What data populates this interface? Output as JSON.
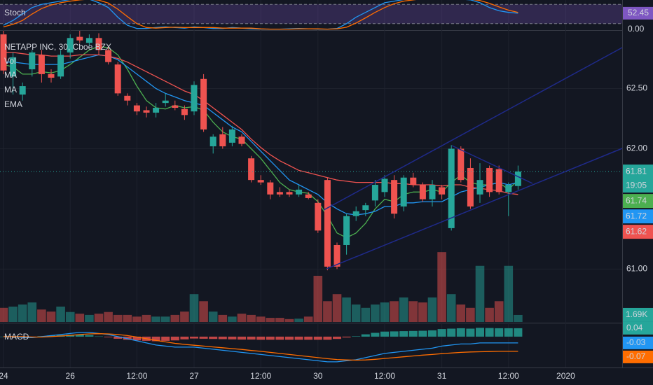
{
  "chart_data": [
    {
      "type": "candlestick",
      "title": "NETAPP INC, 30, Cboe BZX",
      "categories": [
        "24",
        null,
        null,
        null,
        null,
        null,
        null,
        "26",
        null,
        null,
        null,
        null,
        null,
        null,
        "12:00",
        null,
        null,
        null,
        null,
        null,
        "27",
        null,
        null,
        null,
        null,
        null,
        null,
        "12:00",
        null,
        null,
        null,
        null,
        null,
        "30",
        null,
        null,
        null,
        null,
        null,
        null,
        "12:00",
        null,
        null,
        null,
        null,
        null,
        "31",
        null,
        null,
        null,
        null,
        null,
        null,
        "12:00",
        null,
        null,
        null,
        null,
        null,
        "2020"
      ],
      "open": [
        62.95,
        62.6,
        62.45,
        62.66,
        62.78,
        62.62,
        62.6,
        62.8,
        62.93,
        62.88,
        62.92,
        62.82,
        62.7,
        62.44,
        62.36,
        62.32,
        62.3,
        62.38,
        62.36,
        62.33,
        62.31,
        62.58,
        62.02,
        62.12,
        62.05,
        62.1,
        61.92,
        61.74,
        61.72,
        61.64,
        61.64,
        61.62,
        61.62,
        61.55,
        61.74,
        61.2,
        61.2,
        61.44,
        61.49,
        61.57,
        61.64,
        61.74,
        61.52,
        61.76,
        61.7,
        61.58,
        61.68,
        61.34,
        62.0,
        61.84,
        61.62,
        61.84,
        61.83,
        61.64,
        61.69,
        null,
        null,
        null,
        null,
        null
      ],
      "high": [
        62.98,
        62.8,
        62.55,
        62.82,
        62.82,
        62.66,
        62.82,
        62.95,
        62.98,
        62.95,
        62.96,
        62.85,
        62.72,
        62.46,
        62.38,
        62.35,
        62.38,
        62.46,
        62.4,
        62.36,
        62.56,
        62.62,
        62.12,
        62.18,
        62.19,
        62.12,
        61.94,
        61.78,
        61.74,
        61.68,
        61.66,
        61.7,
        61.64,
        61.58,
        61.76,
        61.22,
        61.46,
        61.52,
        61.55,
        61.74,
        61.78,
        61.78,
        61.78,
        61.8,
        61.72,
        61.74,
        61.7,
        62.03,
        62.02,
        61.92,
        61.88,
        61.86,
        61.86,
        61.72,
        61.86,
        null,
        null,
        null,
        null,
        null
      ],
      "low": [
        62.62,
        62.45,
        62.4,
        62.6,
        62.55,
        62.55,
        62.58,
        62.75,
        62.88,
        62.86,
        62.78,
        62.7,
        62.44,
        62.36,
        62.28,
        62.26,
        62.26,
        62.35,
        62.32,
        62.24,
        62.28,
        62.14,
        61.96,
        62.0,
        62.02,
        62.02,
        61.72,
        61.7,
        61.58,
        61.6,
        61.6,
        61.6,
        61.58,
        61.3,
        60.99,
        61.0,
        61.12,
        61.4,
        61.44,
        61.52,
        61.6,
        61.42,
        61.48,
        61.68,
        61.56,
        61.52,
        61.58,
        61.32,
        61.72,
        61.5,
        61.55,
        61.6,
        61.62,
        61.44,
        61.66,
        null,
        null,
        null,
        null,
        null
      ],
      "close": [
        62.65,
        62.76,
        62.52,
        62.8,
        62.62,
        62.59,
        62.78,
        62.92,
        62.9,
        62.92,
        62.82,
        62.72,
        62.46,
        62.4,
        62.31,
        62.3,
        62.34,
        62.4,
        62.34,
        62.28,
        62.53,
        62.16,
        62.1,
        62.02,
        62.16,
        62.04,
        61.74,
        61.72,
        61.62,
        61.62,
        61.62,
        61.66,
        61.59,
        61.32,
        61.02,
        61.02,
        61.44,
        61.48,
        61.53,
        61.7,
        61.75,
        61.46,
        61.76,
        61.7,
        61.58,
        61.7,
        61.62,
        62.0,
        61.74,
        61.52,
        61.74,
        61.64,
        61.64,
        61.7,
        61.81,
        null,
        null,
        null,
        null,
        null
      ],
      "up_color": "#26a69a",
      "down_color": "#ef5350",
      "ylim": [
        60.56,
        62.98
      ],
      "yticks": [
        {
          "value": 62.5,
          "label": "62.50"
        },
        {
          "value": 62,
          "label": "62.00"
        },
        {
          "value": 61,
          "label": "61.00"
        }
      ],
      "grid": true,
      "volume": {
        "name": "Vol",
        "ylim": [
          0,
          70
        ],
        "values": [
          3.4,
          3.7,
          4.2,
          4.7,
          3.0,
          2.5,
          3.7,
          2.4,
          2.0,
          1.7,
          2.0,
          2.4,
          1.7,
          1.7,
          1.3,
          1.7,
          1.3,
          1.3,
          1.7,
          2.5,
          6.7,
          5.0,
          2.5,
          1.7,
          1.3,
          2.0,
          1.7,
          1.3,
          1.0,
          1.0,
          0.7,
          0.8,
          1.3,
          11.1,
          5.0,
          6.7,
          5.9,
          4.2,
          3.4,
          4.2,
          4.7,
          5.0,
          5.9,
          5.0,
          4.7,
          5.9,
          16.8,
          6.7,
          4.2,
          3.4,
          13.5,
          3.4,
          5.0,
          13.5,
          1.69,
          null,
          null,
          null,
          null,
          null
        ]
      },
      "series": [
        {
          "name": "MA",
          "color": "#4caf50",
          "values": [
            62.7,
            62.68,
            62.62,
            62.62,
            62.64,
            62.63,
            62.65,
            62.7,
            62.76,
            62.82,
            62.85,
            62.84,
            62.78,
            62.66,
            62.52,
            62.4,
            62.34,
            62.33,
            62.36,
            62.34,
            62.35,
            62.32,
            62.22,
            62.14,
            62.1,
            62.08,
            62.0,
            61.92,
            61.82,
            61.72,
            61.66,
            61.64,
            61.63,
            61.56,
            61.44,
            61.3,
            61.26,
            61.3,
            61.38,
            61.5,
            61.58,
            61.56,
            61.62,
            61.64,
            61.64,
            61.66,
            61.64,
            61.72,
            61.78,
            61.72,
            61.7,
            61.7,
            61.72,
            61.66,
            61.74,
            null,
            null,
            null,
            null,
            null
          ]
        },
        {
          "name": "MA",
          "color": "#2196f3",
          "values": [
            62.72,
            62.72,
            62.71,
            62.7,
            62.7,
            62.7,
            62.7,
            62.72,
            62.74,
            62.76,
            62.78,
            62.77,
            62.74,
            62.68,
            62.62,
            62.56,
            62.5,
            62.46,
            62.43,
            62.4,
            62.38,
            62.36,
            62.3,
            62.24,
            62.18,
            62.14,
            62.06,
            61.98,
            61.9,
            61.82,
            61.74,
            61.7,
            61.66,
            61.62,
            61.55,
            61.5,
            61.46,
            61.45,
            61.46,
            61.48,
            61.52,
            61.52,
            61.55,
            61.55,
            61.56,
            61.56,
            61.56,
            61.6,
            61.64,
            61.66,
            61.68,
            61.7,
            61.72,
            61.7,
            61.72,
            null,
            null,
            null,
            null,
            null
          ]
        },
        {
          "name": "EMA",
          "color": "#ef5350",
          "values": [
            62.8,
            62.8,
            62.79,
            62.78,
            62.78,
            62.77,
            62.77,
            62.77,
            62.78,
            62.78,
            62.78,
            62.77,
            62.75,
            62.72,
            62.68,
            62.64,
            62.6,
            62.56,
            62.52,
            62.48,
            62.45,
            62.4,
            62.34,
            62.28,
            62.22,
            62.16,
            62.08,
            62.01,
            61.95,
            61.9,
            61.86,
            61.82,
            61.8,
            61.78,
            61.76,
            61.74,
            61.73,
            61.72,
            61.72,
            61.72,
            61.72,
            61.71,
            61.71,
            61.7,
            61.7,
            61.7,
            61.69,
            61.7,
            61.7,
            61.68,
            61.67,
            61.66,
            61.65,
            61.63,
            61.62,
            null,
            null,
            null,
            null,
            null
          ]
        }
      ],
      "tags": [
        61.81,
        61.74,
        61.72,
        61.62,
        {
          "value": 1.69,
          "label": "1.69K"
        }
      ],
      "tag_colors": [
        "#26a69a",
        "#4caf50",
        "#2196f3",
        "#ef5350",
        "#26a69a"
      ],
      "countdown": "19:05"
    },
    {
      "type": "stoch",
      "title": "Stoch",
      "ylim": [
        0,
        93.5
      ],
      "bands": [
        20,
        80
      ],
      "band_color": "#7e57c2",
      "series": [
        {
          "color": "#2196f3",
          "values": [
            15,
            30,
            50,
            70,
            80,
            85,
            90,
            95,
            98,
            96,
            85,
            70,
            40,
            15,
            5,
            5,
            8,
            10,
            8,
            6,
            10,
            8,
            5,
            5,
            8,
            6,
            4,
            3,
            3,
            3,
            4,
            5,
            4,
            3,
            3,
            5,
            20,
            40,
            55,
            70,
            85,
            90,
            95,
            97,
            98,
            97,
            95,
            98,
            96,
            94,
            85,
            70,
            60,
            55,
            52.45,
            null,
            null,
            null,
            null,
            null
          ]
        },
        {
          "color": "#ff6d00",
          "values": [
            10,
            18,
            30,
            50,
            67,
            78,
            85,
            90,
            94,
            96,
            93,
            84,
            65,
            42,
            20,
            8,
            6,
            8,
            9,
            8,
            8,
            8,
            8,
            6,
            6,
            6,
            6,
            4,
            3,
            3,
            3,
            4,
            4,
            4,
            3,
            4,
            9,
            22,
            38,
            55,
            70,
            82,
            90,
            94,
            97,
            97,
            97,
            97,
            96,
            96,
            92,
            83,
            72,
            62,
            55,
            null,
            null,
            null,
            null,
            null
          ]
        }
      ],
      "tags": [
        52.45,
        {
          "value": 0,
          "label": "0.00"
        }
      ],
      "tag_colors": [
        "#7e57c2",
        "#131722"
      ]
    },
    {
      "type": "macd",
      "title": "MACD",
      "ylim": [
        -0.147,
        0.063
      ],
      "histogram": [
        0,
        0,
        -0.005,
        -0.003,
        0.002,
        0.005,
        0.007,
        0.009,
        0.01,
        0.007,
        0.001,
        -0.003,
        -0.01,
        -0.015,
        -0.018,
        -0.02,
        -0.022,
        -0.02,
        -0.018,
        -0.013,
        -0.009,
        -0.01,
        -0.011,
        -0.012,
        -0.013,
        -0.014,
        -0.014,
        -0.015,
        -0.015,
        -0.015,
        -0.015,
        -0.015,
        -0.015,
        -0.015,
        -0.015,
        -0.011,
        -0.004,
        0.002,
        0.011,
        0.018,
        0.024,
        0.025,
        0.026,
        0.027,
        0.028,
        0.03,
        0.036,
        0.038,
        0.04,
        0.038,
        0.042,
        0.041,
        0.04,
        0.04,
        0.04,
        null,
        null,
        null,
        null,
        null
      ],
      "series": [
        {
          "color": "#2196f3",
          "values": [
            0,
            0,
            -0.005,
            -0.005,
            0,
            0.005,
            0.01,
            0.015,
            0.02,
            0.02,
            0.015,
            0.01,
            0,
            -0.01,
            -0.02,
            -0.03,
            -0.04,
            -0.045,
            -0.05,
            -0.05,
            -0.05,
            -0.055,
            -0.06,
            -0.065,
            -0.07,
            -0.075,
            -0.08,
            -0.085,
            -0.09,
            -0.095,
            -0.1,
            -0.105,
            -0.11,
            -0.115,
            -0.12,
            -0.12,
            -0.115,
            -0.11,
            -0.1,
            -0.09,
            -0.08,
            -0.075,
            -0.07,
            -0.065,
            -0.06,
            -0.055,
            -0.045,
            -0.04,
            -0.035,
            -0.035,
            -0.03,
            -0.03,
            -0.03,
            -0.03,
            -0.03,
            null,
            null,
            null,
            null,
            null
          ]
        },
        {
          "color": "#ff6d00",
          "values": [
            0,
            0,
            0,
            -0.002,
            -0.002,
            0,
            0.003,
            0.006,
            0.01,
            0.013,
            0.014,
            0.013,
            0.01,
            0.005,
            -0.002,
            -0.01,
            -0.018,
            -0.025,
            -0.032,
            -0.037,
            -0.041,
            -0.045,
            -0.049,
            -0.053,
            -0.057,
            -0.061,
            -0.066,
            -0.07,
            -0.075,
            -0.08,
            -0.085,
            -0.09,
            -0.095,
            -0.1,
            -0.105,
            -0.109,
            -0.111,
            -0.112,
            -0.111,
            -0.108,
            -0.104,
            -0.1,
            -0.096,
            -0.092,
            -0.088,
            -0.085,
            -0.081,
            -0.078,
            -0.075,
            -0.073,
            -0.072,
            -0.071,
            -0.07,
            -0.07,
            -0.07,
            null,
            null,
            null,
            null,
            null
          ]
        }
      ],
      "tags": [
        0.04,
        -0.03,
        -0.07
      ],
      "tag_colors": [
        "#26a69a",
        "#2196f3",
        "#ff6d00"
      ]
    }
  ]
}
